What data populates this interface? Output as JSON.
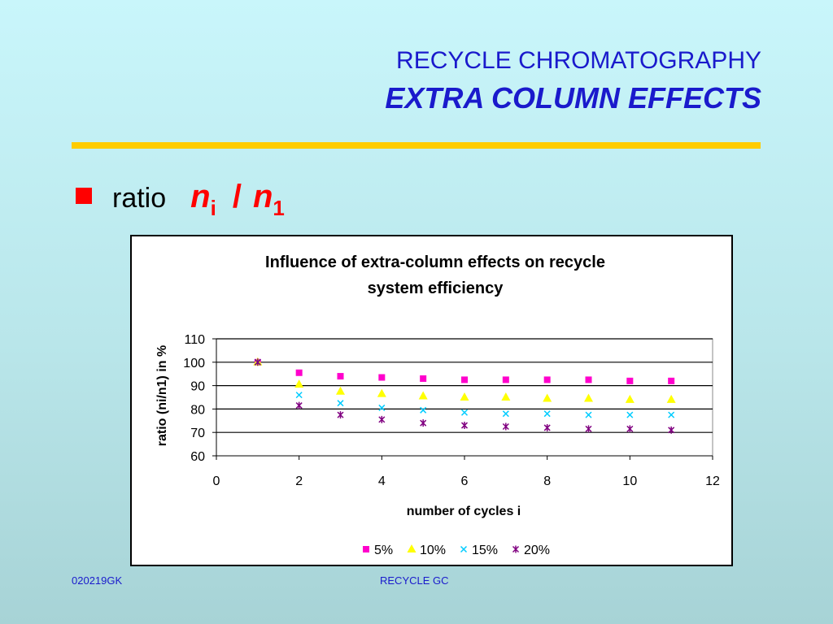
{
  "slide": {
    "title_line1": "RECYCLE CHROMATOGRAPHY",
    "title_line2": "EXTRA COLUMN EFFECTS",
    "bullet_text": "ratio",
    "expr_n_left": "n",
    "expr_sub_left": "i",
    "expr_slash": "/",
    "expr_n_right": "n",
    "expr_sub_right": "1",
    "footer_left": "020219GK",
    "footer_center": "RECYCLE GC"
  },
  "colors": {
    "title": "#1a1acc",
    "rule": "#ffcc00",
    "bullet": "#ff0000"
  },
  "chart_data": {
    "type": "scatter",
    "title_line1": "Influence of extra-column effects on recycle",
    "title_line2": "system efficiency",
    "xlabel": "number of cycles  i",
    "ylabel": "ratio  (ni/n1) in %",
    "xlim": [
      0,
      12
    ],
    "ylim": [
      60,
      110
    ],
    "xticks": [
      0,
      2,
      4,
      6,
      8,
      10,
      12
    ],
    "yticks": [
      60,
      70,
      80,
      90,
      100,
      110
    ],
    "grid": "horizontal",
    "legend_position": "bottom",
    "x": [
      1,
      2,
      3,
      4,
      5,
      6,
      7,
      8,
      9,
      10,
      11
    ],
    "series": [
      {
        "name": "5%",
        "marker": "square",
        "color": "#ff00cc",
        "values": [
          100,
          95.5,
          94,
          93.5,
          93,
          92.5,
          92.5,
          92.5,
          92.5,
          92,
          92
        ]
      },
      {
        "name": "10%",
        "marker": "triangle",
        "color": "#ffff00",
        "values": [
          100,
          90.5,
          87.5,
          86.5,
          85.5,
          85,
          85,
          84.5,
          84.5,
          84,
          84
        ]
      },
      {
        "name": "15%",
        "marker": "x",
        "color": "#00ccff",
        "values": [
          100,
          86,
          82.5,
          80.5,
          79.5,
          78.5,
          78,
          78,
          77.5,
          77.5,
          77.5
        ]
      },
      {
        "name": "20%",
        "marker": "star",
        "color": "#800080",
        "values": [
          100,
          81.5,
          77.5,
          75.5,
          74,
          73,
          72.5,
          72,
          71.5,
          71.5,
          71
        ]
      }
    ]
  }
}
